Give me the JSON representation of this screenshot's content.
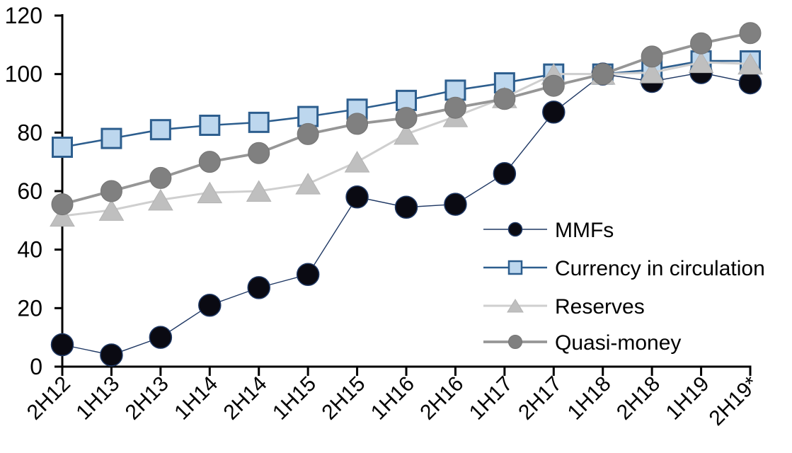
{
  "chart_data": {
    "type": "line",
    "title": "",
    "xlabel": "",
    "ylabel": "",
    "x_categories": [
      "2H12",
      "1H13",
      "2H13",
      "1H14",
      "2H14",
      "1H15",
      "2H15",
      "1H16",
      "2H16",
      "1H17",
      "2H17",
      "1H18",
      "2H18",
      "1H19",
      "2H19*"
    ],
    "series": [
      {
        "name": "MMFs",
        "marker": "circle",
        "marker_fill": "#0a0a12",
        "marker_stroke": "#1f3864",
        "line_color": "#1f3864",
        "values": [
          7.5,
          4,
          10,
          21,
          27,
          31.5,
          58,
          54.5,
          55.5,
          66,
          87,
          100,
          97.5,
          100.5,
          97
        ]
      },
      {
        "name": "Currency in circulation",
        "marker": "square",
        "marker_fill": "#bdd7ee",
        "marker_stroke": "#2d5e8e",
        "line_color": "#2d5e8e",
        "values": [
          75,
          78,
          81,
          82.5,
          83.5,
          85.5,
          88,
          91,
          94.5,
          97,
          100,
          100,
          101.5,
          104.5,
          104.5
        ]
      },
      {
        "name": "Reserves",
        "marker": "triangle",
        "marker_fill": "#bfbfbf",
        "marker_stroke": "#b3b3b3",
        "line_color": "#cfcfcf",
        "values": [
          51.5,
          53.5,
          57,
          59.5,
          60,
          62.5,
          70,
          79.5,
          85.5,
          92,
          100,
          100,
          100.5,
          104,
          103.5
        ]
      },
      {
        "name": "Quasi-money",
        "marker": "circle",
        "marker_fill": "#808080",
        "marker_stroke": "#747474",
        "line_color": "#969696",
        "values": [
          55.5,
          60,
          64.5,
          70,
          73,
          79.5,
          83,
          85,
          88.5,
          91.5,
          96,
          100,
          106,
          110.5,
          114
        ]
      }
    ],
    "ylim": [
      0,
      120
    ],
    "yticks": [
      0,
      20,
      40,
      60,
      80,
      100,
      120
    ],
    "grid": false,
    "legend_position": "inside-right",
    "axis_color": "#000000",
    "text_color": "#000000"
  }
}
